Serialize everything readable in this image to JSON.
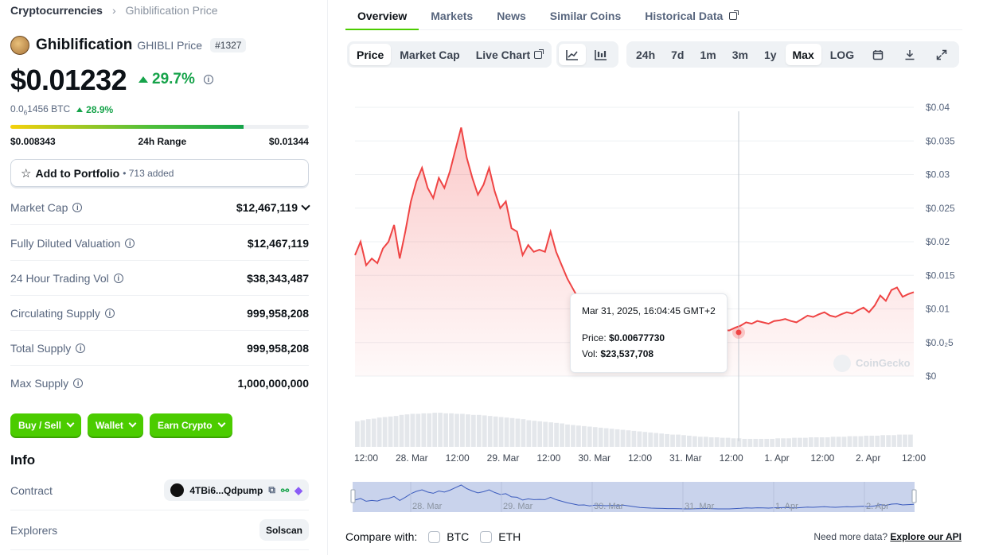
{
  "breadcrumb": {
    "root": "Cryptocurrencies",
    "current": "Ghiblification Price"
  },
  "coin": {
    "name": "Ghiblification",
    "symbol_label": "GHIBLI Price",
    "rank": "#1327"
  },
  "price": {
    "value": "$0.01232",
    "change": "29.7%",
    "btc_main": "0.0",
    "btc_sub": "6",
    "btc_rest": "1456 BTC",
    "btc_change": "28.9%"
  },
  "range": {
    "low": "$0.008343",
    "label": "24h Range",
    "high": "$0.01344",
    "position": 0.78
  },
  "portfolio": {
    "label": "Add to Portfolio",
    "count": "• 713 added"
  },
  "stats": [
    {
      "label": "Market Cap",
      "value": "$12,467,119"
    },
    {
      "label": "Fully Diluted Valuation",
      "value": "$12,467,119"
    },
    {
      "label": "24 Hour Trading Vol",
      "value": "$38,343,487"
    },
    {
      "label": "Circulating Supply",
      "value": "999,958,208"
    },
    {
      "label": "Total Supply",
      "value": "999,958,208"
    },
    {
      "label": "Max Supply",
      "value": "1,000,000,000"
    }
  ],
  "actions": {
    "buy": "Buy / Sell",
    "wallet": "Wallet",
    "earn": "Earn Crypto"
  },
  "info": {
    "heading": "Info",
    "contract_label": "Contract",
    "contract_value": "4TBi6...Qdpump",
    "explorers_label": "Explorers",
    "explorers_value": "Solscan"
  },
  "tabs": [
    "Overview",
    "Markets",
    "News",
    "Similar Coins",
    "Historical Data"
  ],
  "chart_controls": {
    "modes": [
      "Price",
      "Market Cap",
      "Live Chart"
    ],
    "ranges": [
      "24h",
      "7d",
      "1m",
      "3m",
      "1y",
      "Max",
      "LOG"
    ]
  },
  "tooltip": {
    "date": "Mar 31, 2025, 16:04:45 GMT+2",
    "price_label": "Price:",
    "price": "$0.00677730",
    "vol_label": "Vol:",
    "vol": "$23,537,708"
  },
  "watermark": "CoinGecko",
  "compare": {
    "label": "Compare with:",
    "btc": "BTC",
    "eth": "ETH"
  },
  "more": {
    "text": "Need more data?",
    "link": "Explore our API"
  },
  "chart_data": {
    "type": "line",
    "ylim": [
      0,
      0.04
    ],
    "yticks": [
      "$0",
      "$0.0₂5",
      "$0.01",
      "$0.015",
      "$0.02",
      "$0.025",
      "$0.03",
      "$0.035",
      "$0.04"
    ],
    "xticks": [
      "12:00",
      "28. Mar",
      "12:00",
      "29. Mar",
      "12:00",
      "30. Mar",
      "12:00",
      "31. Mar",
      "12:00",
      "1. Apr",
      "12:00",
      "2. Apr",
      "12:00"
    ],
    "navigator_labels": [
      "28. Mar",
      "29. Mar",
      "30. Mar",
      "31. Mar",
      "1. Apr",
      "2. Apr"
    ],
    "series": [
      {
        "values": [
          0.018,
          0.02,
          0.0165,
          0.0175,
          0.0168,
          0.019,
          0.02,
          0.0225,
          0.0175,
          0.0215,
          0.026,
          0.029,
          0.031,
          0.028,
          0.0265,
          0.0295,
          0.028,
          0.0305,
          0.0338,
          0.037,
          0.0325,
          0.0295,
          0.027,
          0.0285,
          0.031,
          0.0275,
          0.025,
          0.026,
          0.022,
          0.0215,
          0.018,
          0.0195,
          0.0185,
          0.0188,
          0.0185,
          0.0215,
          0.0185,
          0.0165,
          0.0145,
          0.013,
          0.0115,
          0.0118,
          0.0105,
          0.0115,
          0.0112,
          0.0108,
          0.0113,
          0.0108,
          0.0115,
          0.0105,
          0.0095,
          0.0085,
          0.0082,
          0.0078,
          0.0076,
          0.0074,
          0.0072,
          0.0072,
          0.007,
          0.0068,
          0.0068,
          0.007,
          0.0072,
          0.0074,
          0.007,
          0.0068,
          0.0068,
          0.0068,
          0.0072,
          0.0075,
          0.008,
          0.0078,
          0.0082,
          0.008,
          0.0078,
          0.0082,
          0.0083,
          0.0085,
          0.0082,
          0.008,
          0.0085,
          0.009,
          0.0088,
          0.0092,
          0.0095,
          0.009,
          0.0088,
          0.0092,
          0.0095,
          0.0093,
          0.0098,
          0.0102,
          0.0095,
          0.0105,
          0.012,
          0.0112,
          0.0128,
          0.0132,
          0.0118,
          0.0122,
          0.0125
        ]
      }
    ],
    "volume": [
      0.48,
      0.5,
      0.52,
      0.53,
      0.55,
      0.56,
      0.57,
      0.58,
      0.6,
      0.61,
      0.62,
      0.62,
      0.63,
      0.63,
      0.64,
      0.64,
      0.63,
      0.63,
      0.62,
      0.62,
      0.61,
      0.6,
      0.6,
      0.59,
      0.58,
      0.57,
      0.56,
      0.55,
      0.54,
      0.53,
      0.52,
      0.5,
      0.49,
      0.48,
      0.47,
      0.46,
      0.45,
      0.44,
      0.42,
      0.41,
      0.4,
      0.39,
      0.38,
      0.37,
      0.36,
      0.35,
      0.34,
      0.33,
      0.32,
      0.31,
      0.3,
      0.29,
      0.28,
      0.27,
      0.26,
      0.25,
      0.24,
      0.23,
      0.23,
      0.22,
      0.21,
      0.2,
      0.19,
      0.19,
      0.18,
      0.18,
      0.17,
      0.17,
      0.16,
      0.16,
      0.15,
      0.15,
      0.15,
      0.15,
      0.15,
      0.15,
      0.16,
      0.16,
      0.16,
      0.17,
      0.17,
      0.17,
      0.18,
      0.18,
      0.18,
      0.18,
      0.19,
      0.19,
      0.19,
      0.2,
      0.2,
      0.2,
      0.21,
      0.21,
      0.21,
      0.22,
      0.22,
      0.22,
      0.23,
      0.23,
      0.23
    ]
  }
}
